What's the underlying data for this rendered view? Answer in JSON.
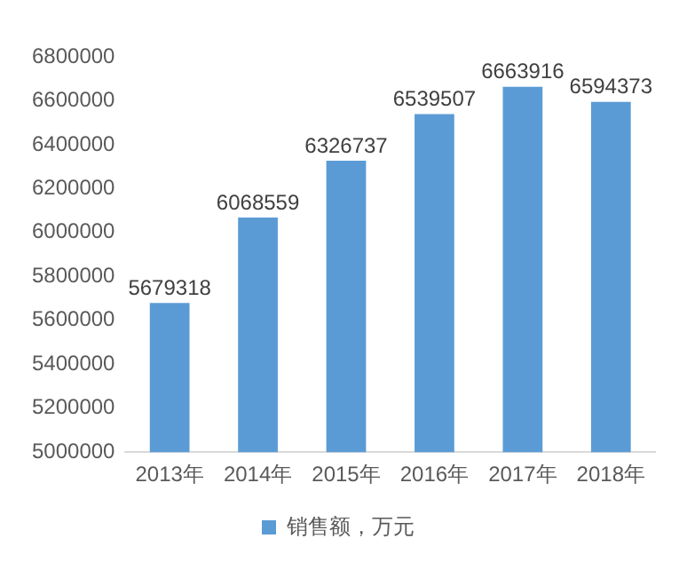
{
  "chart_data": {
    "type": "bar",
    "categories": [
      "2013年",
      "2014年",
      "2015年",
      "2016年",
      "2017年",
      "2018年"
    ],
    "series": [
      {
        "name": "销售额，万元",
        "color": "#5b9bd5",
        "values": [
          5679318,
          6068559,
          6326737,
          6539507,
          6663916,
          6594373
        ]
      }
    ],
    "ylim": [
      5000000,
      6800000
    ],
    "yticks": [
      5000000,
      5200000,
      5400000,
      5600000,
      5800000,
      6000000,
      6200000,
      6400000,
      6600000,
      6800000
    ],
    "data_labels": true,
    "legend": "bottom",
    "grid": false
  }
}
